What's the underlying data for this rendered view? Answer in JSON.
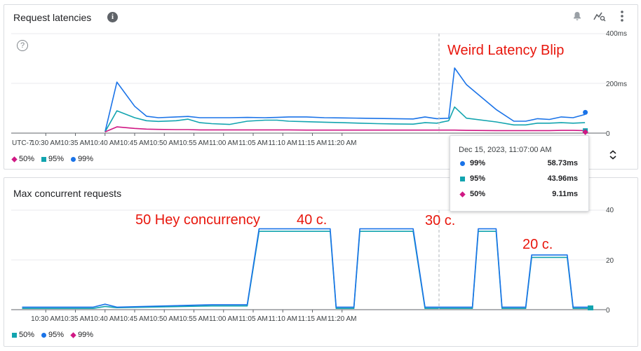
{
  "colors": {
    "p50": "#d01884",
    "p95": "#12a4af",
    "p99": "#1a73e8",
    "annotation": "#e8160c",
    "grid": "#e8eaed",
    "cursor": "#bdc1c6"
  },
  "request_latencies": {
    "title": "Request latencies",
    "info_icon": "i",
    "help_icon": "?",
    "toolbar": {
      "alert_icon": "bell-add-icon",
      "explore_icon": "query-explore-icon",
      "more_icon": "more-vert-icon"
    },
    "timezone_label": "UTC-7",
    "y_ticks": [
      "400ms",
      "200ms",
      "0"
    ],
    "x_ticks": [
      "10:30 AM",
      "10:35 AM",
      "10:40 AM",
      "10:45 AM",
      "10:50 AM",
      "10:55 AM",
      "11:00 AM",
      "11:05 AM",
      "11:10 AM",
      "11:15 AM",
      "11:20 AM"
    ],
    "legend": [
      {
        "label": "50%",
        "marker": "diamond",
        "color": "#d01884"
      },
      {
        "label": "95%",
        "marker": "square",
        "color": "#12a4af"
      },
      {
        "label": "99%",
        "marker": "circle",
        "color": "#1a73e8"
      }
    ],
    "annotation": "Weird Latency Blip",
    "tooltip": {
      "date": "Dec 15, 2023, 11:07:00 AM",
      "rows": [
        {
          "name": "99%",
          "value": "58.73ms",
          "marker": "circle",
          "color": "#1a73e8"
        },
        {
          "name": "95%",
          "value": "43.96ms",
          "marker": "square",
          "color": "#12a4af"
        },
        {
          "name": "50%",
          "value": "9.11ms",
          "marker": "diamond",
          "color": "#d01884"
        }
      ]
    }
  },
  "max_concurrent": {
    "title": "Max concurrent requests",
    "y_ticks": [
      "40",
      "20",
      "0"
    ],
    "x_ticks": [
      "10:30 AM",
      "10:35 AM",
      "10:40 AM",
      "10:45 AM",
      "10:50 AM",
      "10:55 AM",
      "11:00 AM",
      "11:05 AM",
      "11:10 AM",
      "11:15 AM",
      "11:20 AM"
    ],
    "legend": [
      {
        "label": "50%",
        "marker": "square",
        "color": "#12a4af"
      },
      {
        "label": "95%",
        "marker": "circle",
        "color": "#1a73e8"
      },
      {
        "label": "99%",
        "marker": "diamond",
        "color": "#d01884"
      }
    ],
    "annotations": [
      "50 Hey concurrency",
      "40 c.",
      "30 c.",
      "20 c."
    ]
  },
  "chart_data": [
    {
      "type": "line",
      "title": "Request latencies",
      "y_unit": "ms",
      "ylim": [
        0,
        400
      ],
      "x_minutes_after_10_26": [
        14,
        16,
        19,
        21,
        23,
        26,
        28,
        30,
        32,
        35,
        38,
        41,
        43,
        45,
        48,
        51,
        54,
        57,
        60,
        63,
        66,
        68,
        70,
        72,
        73,
        75,
        80,
        83,
        85,
        87,
        89,
        91,
        93,
        95
      ],
      "series": [
        {
          "name": "99%",
          "values": [
            5,
            205,
            108,
            68,
            62,
            65,
            67,
            62,
            62,
            62,
            63,
            62,
            63,
            65,
            65,
            62,
            61,
            60,
            59,
            58,
            57,
            65,
            58,
            60,
            262,
            195,
            95,
            48,
            48,
            58,
            55,
            65,
            62,
            75
          ]
        },
        {
          "name": "95%",
          "values": [
            5,
            90,
            62,
            50,
            47,
            50,
            56,
            42,
            38,
            35,
            48,
            52,
            52,
            48,
            46,
            44,
            42,
            40,
            38,
            37,
            36,
            42,
            40,
            50,
            105,
            60,
            45,
            33,
            33,
            40,
            40,
            42,
            40,
            42
          ]
        },
        {
          "name": "50%",
          "values": [
            5,
            25,
            19,
            16,
            15,
            14,
            14,
            13,
            13,
            13,
            13,
            13,
            13,
            13,
            12,
            12,
            12,
            12,
            12,
            12,
            12,
            12,
            12,
            12,
            12,
            11,
            10,
            10,
            10,
            10,
            10,
            11,
            11,
            10
          ]
        }
      ]
    },
    {
      "type": "line",
      "title": "Max concurrent requests",
      "ylim": [
        0,
        40
      ],
      "x_minutes_after_10_26": [
        0,
        12,
        14,
        16,
        32,
        38,
        40,
        41,
        43,
        44,
        45,
        52,
        53,
        56,
        57,
        66,
        68,
        69,
        70,
        76,
        77,
        80,
        81,
        85,
        86,
        92,
        93,
        96
      ],
      "series": [
        {
          "name": "50%",
          "values": [
            0.5,
            0.5,
            1.3,
            0.8,
            1.5,
            1.5,
            31.5,
            31.5,
            31.5,
            31.5,
            31.5,
            31.5,
            0.5,
            0.5,
            31.5,
            31.5,
            0.5,
            0.5,
            0.5,
            0.5,
            31.5,
            31.5,
            0.5,
            0.5,
            21,
            21,
            0.5,
            0.5
          ]
        },
        {
          "name": "95%",
          "values": [
            1,
            1,
            2.2,
            1,
            2,
            2,
            32.5,
            32.5,
            32.5,
            32.5,
            32.5,
            32.5,
            1,
            1,
            32.5,
            32.5,
            1,
            1,
            1,
            1,
            32.5,
            32.5,
            1,
            1,
            22,
            22,
            1,
            1
          ]
        }
      ]
    }
  ]
}
